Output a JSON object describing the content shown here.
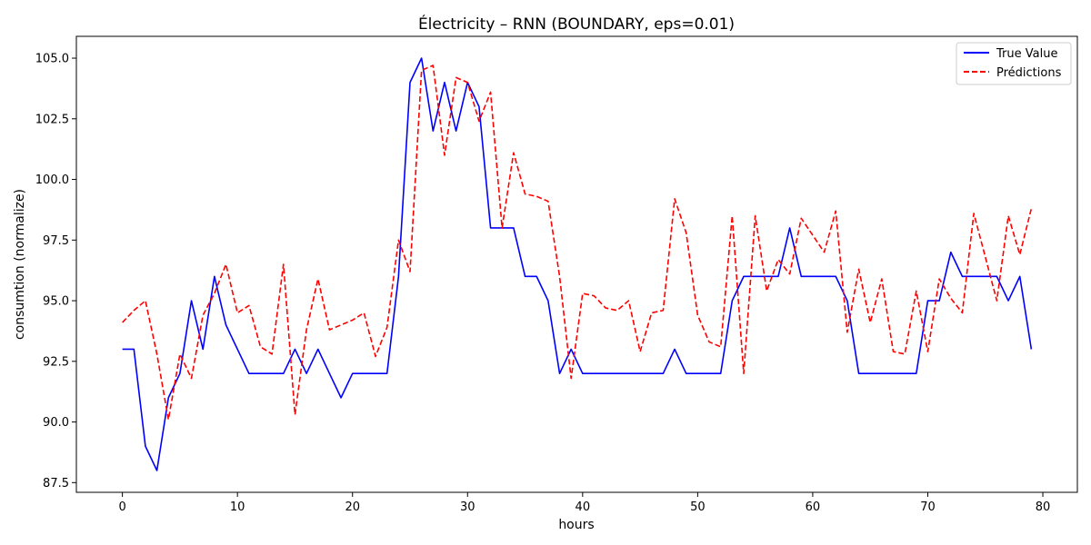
{
  "chart_data": {
    "type": "line",
    "title": "Électricity – RNN (BOUNDARY, eps=0.01)",
    "xlabel": "hours",
    "ylabel": "consumtion (normalize)",
    "xlim": [
      -4,
      83
    ],
    "ylim": [
      87.1,
      105.9
    ],
    "x_ticks": [
      0,
      10,
      20,
      30,
      40,
      50,
      60,
      70,
      80
    ],
    "y_ticks": [
      87.5,
      90.0,
      92.5,
      95.0,
      97.5,
      100.0,
      102.5,
      105.0
    ],
    "grid": false,
    "legend_position": "top-right",
    "series": [
      {
        "name": "True Value",
        "color": "#0000ff",
        "style": "solid",
        "values": [
          93,
          93,
          89,
          88,
          91,
          92,
          95,
          93,
          96,
          94,
          93,
          92,
          92,
          92,
          92,
          93,
          92,
          93,
          92,
          91,
          92,
          92,
          92,
          92,
          96,
          104,
          105,
          102,
          104,
          102,
          104,
          103,
          98,
          98,
          98,
          96,
          96,
          95,
          92,
          93,
          92,
          92,
          92,
          92,
          92,
          92,
          92,
          92,
          93,
          92,
          92,
          92,
          92,
          95,
          96,
          96,
          96,
          96,
          98,
          96,
          96,
          96,
          96,
          95,
          92,
          92,
          92,
          92,
          92,
          92,
          95,
          95,
          97,
          96,
          96,
          96,
          96,
          95,
          96,
          93
        ]
      },
      {
        "name": "Prédictions",
        "color": "#ff0000",
        "style": "dashed",
        "values": [
          94.1,
          94.6,
          95.0,
          92.8,
          90.1,
          92.8,
          91.8,
          94.4,
          95.3,
          96.5,
          94.5,
          94.8,
          93.1,
          92.8,
          96.5,
          90.3,
          93.8,
          95.9,
          93.8,
          94.0,
          94.2,
          94.5,
          92.7,
          93.9,
          97.5,
          96.2,
          104.5,
          104.7,
          101.0,
          104.2,
          104.0,
          102.4,
          103.6,
          98.0,
          101.1,
          99.4,
          99.3,
          99.1,
          96.0,
          91.8,
          95.3,
          95.2,
          94.7,
          94.6,
          95.0,
          92.9,
          94.5,
          94.6,
          99.2,
          97.8,
          94.4,
          93.3,
          93.1,
          98.5,
          92.0,
          98.5,
          95.4,
          96.7,
          96.1,
          98.4,
          97.7,
          97.0,
          98.7,
          93.7,
          96.3,
          94.1,
          95.9,
          92.9,
          92.8,
          95.4,
          92.9,
          95.9,
          95.1,
          94.5,
          98.6,
          96.8,
          95.0,
          98.5,
          96.9,
          98.8
        ]
      }
    ]
  }
}
